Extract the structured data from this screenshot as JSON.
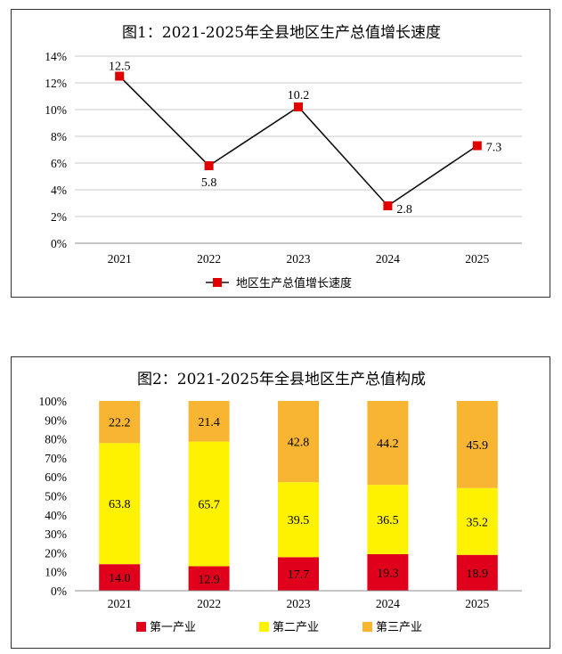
{
  "chart_data": [
    {
      "type": "line",
      "title": "图1：2021-2025年全县地区生产总值增长速度",
      "categories": [
        "2021",
        "2022",
        "2023",
        "2024",
        "2025"
      ],
      "series": [
        {
          "name": "地区生产总值增长速度",
          "values": [
            12.5,
            5.8,
            10.2,
            2.8,
            7.3
          ],
          "color": "#e00000"
        }
      ],
      "ylim": [
        0,
        14
      ],
      "yticks": [
        "0%",
        "2%",
        "4%",
        "6%",
        "8%",
        "10%",
        "12%",
        "14%"
      ],
      "data_labels": [
        "12.5",
        "5.8",
        "10.2",
        "2.8",
        "7.3"
      ],
      "grid": true,
      "legend_position": "bottom"
    },
    {
      "type": "bar",
      "stacked": true,
      "title": "图2：2021-2025年全县地区生产总值构成",
      "categories": [
        "2021",
        "2022",
        "2023",
        "2024",
        "2025"
      ],
      "series": [
        {
          "name": "第一产业",
          "values": [
            14.0,
            12.9,
            17.7,
            19.3,
            18.9
          ],
          "labels": [
            "14.0",
            "12.9",
            "17.7",
            "19.3",
            "18.9"
          ],
          "color": "#e0001b"
        },
        {
          "name": "第二产业",
          "values": [
            63.8,
            65.7,
            39.5,
            36.5,
            35.2
          ],
          "labels": [
            "63.8",
            "65.7",
            "39.5",
            "36.5",
            "35.2"
          ],
          "color": "#fff200"
        },
        {
          "name": "第三产业",
          "values": [
            22.2,
            21.4,
            42.8,
            44.2,
            45.9
          ],
          "labels": [
            "22.2",
            "21.4",
            "42.8",
            "44.2",
            "45.9"
          ],
          "color": "#f7b531"
        }
      ],
      "ylim": [
        0,
        100
      ],
      "yticks": [
        "0%",
        "10%",
        "20%",
        "30%",
        "40%",
        "50%",
        "60%",
        "70%",
        "80%",
        "90%",
        "100%"
      ],
      "grid": false,
      "legend_position": "bottom"
    }
  ]
}
